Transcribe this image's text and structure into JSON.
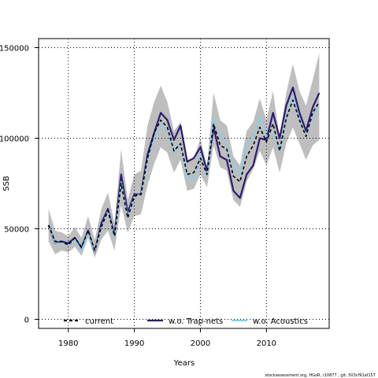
{
  "chart_data": {
    "type": "line",
    "xlabel": "Years",
    "ylabel": "SSB",
    "xlim": [
      1975.5,
      2019.5
    ],
    "ylim": [
      -5000,
      155000
    ],
    "xticks": [
      1980,
      1990,
      2000,
      2010
    ],
    "yticks": [
      0,
      50000,
      100000,
      150000
    ],
    "grid": true,
    "legend_position": "bottom",
    "x": [
      1977,
      1978,
      1979,
      1980,
      1981,
      1982,
      1983,
      1984,
      1985,
      1986,
      1987,
      1988,
      1989,
      1990,
      1991,
      1992,
      1993,
      1994,
      1995,
      1996,
      1997,
      1998,
      1999,
      2000,
      2001,
      2002,
      2003,
      2004,
      2005,
      2006,
      2007,
      2008,
      2009,
      2010,
      2011,
      2012,
      2013,
      2014,
      2015,
      2016,
      2017,
      2018
    ],
    "band": {
      "color": "#bebebe",
      "upper": [
        61000,
        49000,
        48000,
        46000,
        51000,
        45000,
        57000,
        44000,
        61000,
        70000,
        53000,
        94000,
        66000,
        80000,
        82000,
        107000,
        120000,
        129000,
        120000,
        104000,
        109000,
        88000,
        89000,
        100000,
        84000,
        125000,
        110000,
        107000,
        90000,
        85000,
        104000,
        109000,
        122000,
        110000,
        126000,
        100000,
        125000,
        141000,
        126000,
        118000,
        132000,
        147000
      ],
      "lower": [
        43000,
        36000,
        38000,
        37000,
        40000,
        35000,
        45000,
        34000,
        44000,
        49000,
        38000,
        63000,
        48000,
        57000,
        58000,
        74000,
        86000,
        95000,
        92000,
        81000,
        88000,
        71000,
        72000,
        80000,
        73000,
        96000,
        84000,
        82000,
        66000,
        62000,
        76000,
        83000,
        93000,
        85000,
        95000,
        81000,
        97000,
        106000,
        97000,
        88000,
        96000,
        99000
      ]
    },
    "series": [
      {
        "name": "current",
        "color": "#000000",
        "dash": "4,3",
        "values": [
          52000,
          43000,
          43000,
          41000,
          45000,
          40000,
          49000,
          38000,
          51000,
          60000,
          46000,
          75000,
          56000,
          68000,
          69000,
          89000,
          103000,
          110000,
          106000,
          93000,
          97000,
          80000,
          81000,
          89000,
          80000,
          108000,
          96000,
          94000,
          79000,
          76000,
          90000,
          96000,
          106000,
          98000,
          108000,
          93000,
          111000,
          121000,
          110000,
          101000,
          114000,
          120000
        ]
      },
      {
        "name": "w.o. Trap-nets",
        "color": "#2e1a73",
        "dash": "",
        "values": [
          52000,
          42000,
          43000,
          42000,
          45000,
          39000,
          49000,
          37000,
          53000,
          61000,
          46000,
          80000,
          59000,
          69000,
          69000,
          91000,
          103000,
          114000,
          110000,
          99000,
          107000,
          87000,
          89000,
          95000,
          82000,
          106000,
          90000,
          88000,
          71000,
          67000,
          80000,
          85000,
          100000,
          99000,
          114000,
          100000,
          118000,
          128000,
          114000,
          104000,
          117000,
          125000
        ]
      },
      {
        "name": "w.o. Acoustics",
        "color": "#87ceeb",
        "dash": "",
        "values": [
          52000,
          42000,
          42000,
          41000,
          44000,
          38000,
          48000,
          37000,
          51000,
          60000,
          45000,
          76000,
          57000,
          68000,
          69000,
          88000,
          100000,
          107000,
          104000,
          92000,
          97000,
          77000,
          77000,
          91000,
          79000,
          111000,
          102000,
          95000,
          85000,
          80000,
          96000,
          100000,
          112000,
          101000,
          103000,
          92000,
          112000,
          123000,
          111000,
          102000,
          112000,
          117000
        ]
      }
    ]
  },
  "footer": "stockassessment.org, HGoR, r10877 , git: 503cf91af157"
}
